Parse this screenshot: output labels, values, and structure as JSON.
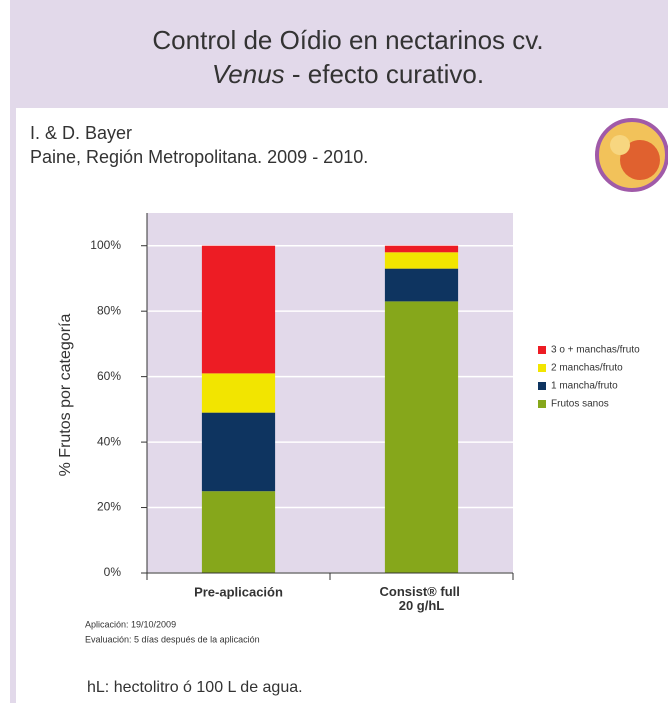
{
  "header": {
    "title_line1": "Control de Oídio en nectarinos cv.",
    "title_italic": "Venus",
    "title_rest": " - efecto curativo.",
    "author": "I. & D. Bayer",
    "location": "Paine, Región Metropolitana. 2009 - 2010."
  },
  "chart_data": {
    "type": "stacked_bar",
    "y_label": "% Frutos por categoría",
    "categories": [
      "Pre-aplicación",
      "Consist® full 20 g/hL"
    ],
    "series": [
      {
        "name": "Frutos sanos",
        "color": "#86a71b",
        "values": [
          25,
          83
        ]
      },
      {
        "name": "1 mancha/fruto",
        "color": "#0e3460",
        "values": [
          24,
          10
        ]
      },
      {
        "name": "2 manchas/fruto",
        "color": "#f2e500",
        "values": [
          12,
          5
        ]
      },
      {
        "name": "3 o + manchas/fruto",
        "color": "#ed1c24",
        "values": [
          39,
          2
        ]
      }
    ],
    "ylim": [
      0,
      110
    ],
    "yticks": [
      {
        "value": 0,
        "label": "0%"
      },
      {
        "value": 20,
        "label": "20%"
      },
      {
        "value": 40,
        "label": "40%"
      },
      {
        "value": 60,
        "label": "60%"
      },
      {
        "value": 80,
        "label": "80%"
      },
      {
        "value": 100,
        "label": "100%"
      }
    ],
    "grid": true,
    "legend": "right"
  },
  "notes": [
    "Aplicación: 19/10/2009",
    "Evaluación: 5 días después de la aplicación"
  ],
  "footer": "hL: hectolitro ó 100 L de agua."
}
